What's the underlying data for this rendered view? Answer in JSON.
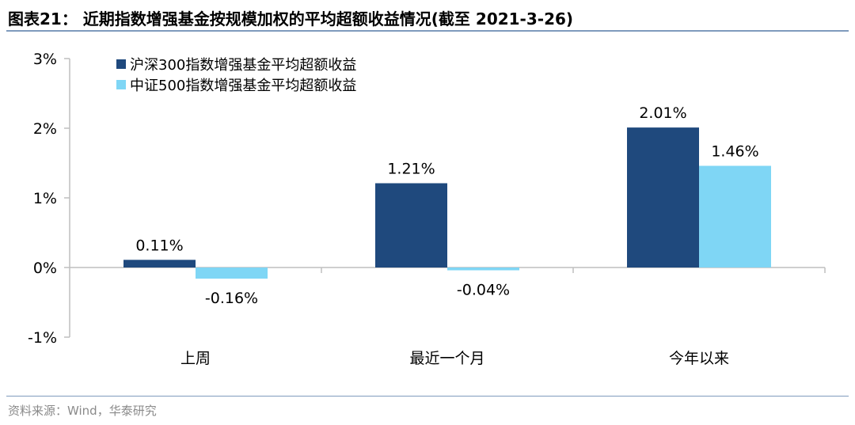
{
  "header": {
    "title": "图表21：  近期指数增强基金按规模加权的平均超额收益情况(截至 2021-3-26)"
  },
  "footer": {
    "source": "资料来源：Wind，华泰研究"
  },
  "colors": {
    "series1": "#1f497d",
    "series2": "#7fd6f5",
    "axis": "#bfbfbf",
    "rule": "#7f9bbd"
  },
  "chart_data": {
    "type": "bar",
    "title": "近期指数增强基金按规模加权的平均超额收益情况(截至 2021-3-26)",
    "xlabel": "",
    "ylabel": "",
    "categories": [
      "上周",
      "最近一个月",
      "今年以来"
    ],
    "series": [
      {
        "name": "沪深300指数增强基金平均超额收益",
        "values": [
          0.11,
          1.21,
          2.01
        ],
        "labels": [
          "0.11%",
          "1.21%",
          "2.01%"
        ]
      },
      {
        "name": "中证500指数增强基金平均超额收益",
        "values": [
          -0.16,
          -0.04,
          1.46
        ],
        "labels": [
          "-0.16%",
          "-0.04%",
          "1.46%"
        ]
      }
    ],
    "ylim": [
      -1,
      3
    ],
    "yticks": [
      3,
      2,
      1,
      0,
      -1
    ],
    "ytick_labels": [
      "3%",
      "2%",
      "1%",
      "0%",
      "-1%"
    ],
    "grid": false,
    "legend_position": "top-left"
  }
}
